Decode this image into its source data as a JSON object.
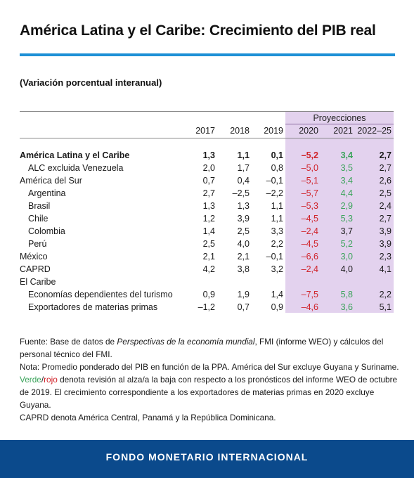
{
  "title": "América Latina y el Caribe: Crecimiento del PIB real",
  "subtitle": "(Variación porcentual interanual)",
  "projections_label": "Proyecciones",
  "years": [
    "2017",
    "2018",
    "2019",
    "2020",
    "2021",
    "2022–25"
  ],
  "rows": [
    {
      "label": "América Latina y el Caribe",
      "v": [
        "1,3",
        "1,1",
        "0,1",
        "–5,2",
        "3,4",
        "2,7"
      ]
    },
    {
      "label": "ALC excluida Venezuela",
      "v": [
        "2,0",
        "1,7",
        "0,8",
        "–5,0",
        "3,5",
        "2,7"
      ]
    },
    {
      "label": "América del Sur",
      "v": [
        "0,7",
        "0,4",
        "–0,1",
        "–5,1",
        "3,4",
        "2,6"
      ]
    },
    {
      "label": "Argentina",
      "v": [
        "2,7",
        "–2,5",
        "–2,2",
        "–5,7",
        "4,4",
        "2,5"
      ]
    },
    {
      "label": "Brasil",
      "v": [
        "1,3",
        "1,3",
        "1,1",
        "–5,3",
        "2,9",
        "2,4"
      ]
    },
    {
      "label": "Chile",
      "v": [
        "1,2",
        "3,9",
        "1,1",
        "–4,5",
        "5,3",
        "2,7"
      ]
    },
    {
      "label": "Colombia",
      "v": [
        "1,4",
        "2,5",
        "3,3",
        "–2,4",
        "3,7",
        "3,9"
      ]
    },
    {
      "label": "Perú",
      "v": [
        "2,5",
        "4,0",
        "2,2",
        "–4,5",
        "5,2",
        "3,9"
      ]
    },
    {
      "label": "México",
      "v": [
        "2,1",
        "2,1",
        "–0,1",
        "–6,6",
        "3,0",
        "2,3"
      ]
    },
    {
      "label": "CAPRD",
      "v": [
        "4,2",
        "3,8",
        "3,2",
        "–2,4",
        "4,0",
        "4,1"
      ]
    },
    {
      "label": "El Caribe",
      "v": [
        "",
        "",
        "",
        "",
        "",
        ""
      ]
    },
    {
      "label": "Economías dependientes del turismo",
      "v": [
        "0,9",
        "1,9",
        "1,4",
        "–7,5",
        "5,8",
        "2,2"
      ]
    },
    {
      "label": "Exportadores de materias primas",
      "v": [
        "–1,2",
        "0,7",
        "0,9",
        "–4,6",
        "3,6",
        "5,1"
      ]
    }
  ],
  "colors": {
    "revision_up": "#3aa35a",
    "revision_down": "#d0232a",
    "projection_bg": "#e3d2ee",
    "accent_rule": "#1e90d6",
    "footer_bg": "#0b4a8c"
  },
  "notes": {
    "fuente_prefix": "Fuente: Base de datos de ",
    "fuente_italic": "Perspectivas de la economía mundial",
    "fuente_suffix": ", FMI (informe WEO) y cálculos del personal técnico del FMI.",
    "nota": "Nota: Promedio ponderado del PIB en función de la PPA. América del Sur excluye Guyana y Suriname.",
    "verde": "Verde",
    "slash": "/",
    "rojo": "rojo",
    "revision": " denota revisión al alza/a la baja con respecto a los pronósticos del informe WEO de octubre de 2019. El crecimiento correspondiente a los exportadores de materias primas en 2020 excluye Guyana.",
    "caprd": "CAPRD denota América Central, Panamá y la República Dominicana."
  },
  "footer": "FONDO MONETARIO INTERNACIONAL"
}
